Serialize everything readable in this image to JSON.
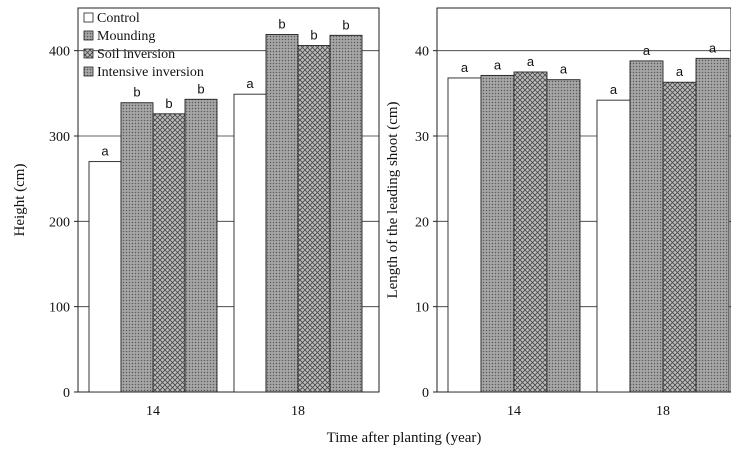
{
  "chart_data": [
    {
      "type": "bar",
      "ylabel": "Height (cm)",
      "categories": [
        "14",
        "18"
      ],
      "ylim": [
        0,
        450
      ],
      "yticks": [
        0,
        100,
        200,
        300,
        400
      ],
      "grid": "horizontal",
      "legend_position": "top-left",
      "series": [
        {
          "name": "Control",
          "values": [
            270,
            349
          ],
          "letters": [
            "a",
            "a"
          ],
          "pattern": "white"
        },
        {
          "name": "Mounding",
          "values": [
            339,
            419
          ],
          "letters": [
            "b",
            "b"
          ],
          "pattern": "stipple"
        },
        {
          "name": "Soil inversion",
          "values": [
            326,
            406
          ],
          "letters": [
            "b",
            "b"
          ],
          "pattern": "crosshatch"
        },
        {
          "name": "Intensive inversion",
          "values": [
            343,
            418
          ],
          "letters": [
            "b",
            "b"
          ],
          "pattern": "stipple"
        }
      ]
    },
    {
      "type": "bar",
      "ylabel": "Length of the leading shoot (cm)",
      "categories": [
        "14",
        "18"
      ],
      "ylim": [
        0,
        45
      ],
      "yticks": [
        0,
        10,
        20,
        30,
        40
      ],
      "grid": "horizontal",
      "series": [
        {
          "name": "Control",
          "values": [
            36.8,
            34.2
          ],
          "letters": [
            "a",
            "a"
          ],
          "pattern": "white"
        },
        {
          "name": "Mounding",
          "values": [
            37.1,
            38.8
          ],
          "letters": [
            "a",
            "a"
          ],
          "pattern": "stipple"
        },
        {
          "name": "Soil inversion",
          "values": [
            37.5,
            36.3
          ],
          "letters": [
            "a",
            "a"
          ],
          "pattern": "crosshatch"
        },
        {
          "name": "Intensive inversion",
          "values": [
            36.6,
            39.1
          ],
          "letters": [
            "a",
            "a"
          ],
          "pattern": "stipple"
        }
      ]
    }
  ],
  "xlabel": "Time after planting (year)",
  "legend": [
    "Control",
    "Mounding",
    "Soil inversion",
    "Intensive inversion"
  ]
}
